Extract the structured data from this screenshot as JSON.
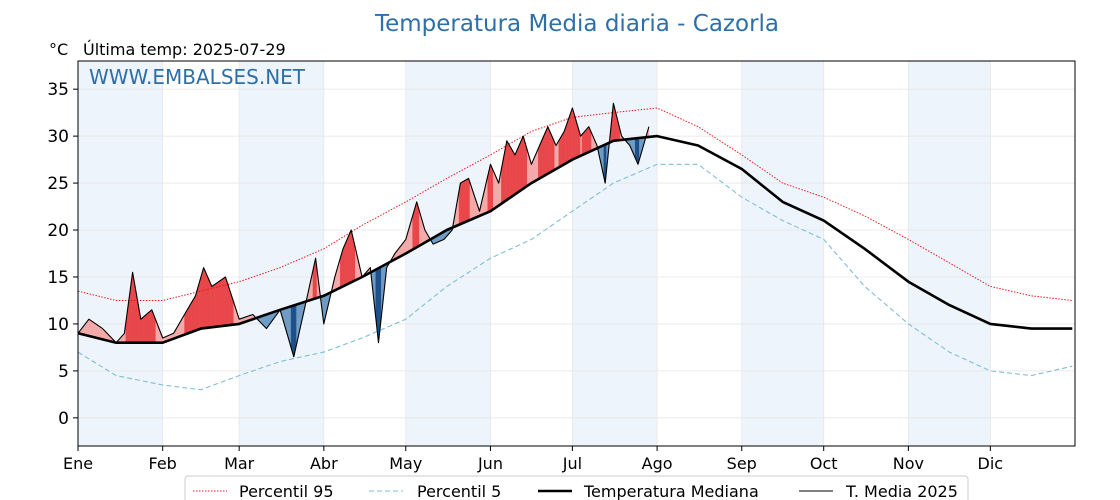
{
  "chart_data": {
    "type": "line",
    "title": "Temperatura Media diaria - Cazorla",
    "unit_label": "°C",
    "subtitle": "Última temp: 2025-07-29",
    "watermark": "WWW.EMBALSES.NET",
    "ylim": [
      -3,
      38
    ],
    "yticks": [
      0,
      5,
      10,
      15,
      20,
      25,
      30,
      35
    ],
    "month_labels": [
      "Ene",
      "Feb",
      "Mar",
      "Abr",
      "May",
      "Jun",
      "Jul",
      "Ago",
      "Sep",
      "Oct",
      "Nov",
      "Dic"
    ],
    "month_start_doy": [
      1,
      32,
      60,
      91,
      121,
      152,
      182,
      213,
      244,
      274,
      305,
      335
    ],
    "days_in_year": 365,
    "shaded_months": [
      "Ene",
      "Mar",
      "May",
      "Jul",
      "Sep",
      "Nov"
    ],
    "grid": true,
    "legend_position": "bottom",
    "colors": {
      "p95": "#e41a1c",
      "p5": "#7fbfd6",
      "median": "#000000",
      "current": "#000000",
      "above_fill": "#f4a9a8",
      "above_strong": "#e8474a",
      "below_fill": "#6e9cc4",
      "below_strong": "#1d4f8a",
      "title": "#2e6fa7",
      "watermark": "#2e6fa7",
      "band": "#eef4fb"
    },
    "series": [
      {
        "name": "Percentil 95",
        "key": "p95",
        "style": "dotted",
        "x": [
          1,
          15,
          32,
          46,
          60,
          75,
          91,
          105,
          121,
          136,
          152,
          167,
          182,
          197,
          213,
          228,
          244,
          259,
          274,
          289,
          305,
          320,
          335,
          350,
          365
        ],
        "y": [
          13.5,
          12.5,
          12.5,
          13.5,
          14.5,
          16,
          18,
          20.5,
          23,
          25.5,
          28,
          30.5,
          32,
          32.5,
          33,
          31,
          28,
          25,
          23.5,
          21.5,
          19,
          16.5,
          14,
          13,
          12.5
        ]
      },
      {
        "name": "Percentil 5",
        "key": "p5",
        "style": "dashed",
        "x": [
          1,
          15,
          32,
          46,
          60,
          75,
          91,
          105,
          121,
          136,
          152,
          167,
          182,
          197,
          213,
          228,
          244,
          259,
          274,
          289,
          305,
          320,
          335,
          350,
          365
        ],
        "y": [
          7,
          4.5,
          3.5,
          3,
          4.5,
          6,
          7,
          8.5,
          10.5,
          14,
          17,
          19,
          22,
          25,
          27,
          27,
          23.5,
          21,
          19,
          14,
          10,
          7,
          5,
          4.5,
          5.5
        ]
      },
      {
        "name": "Temperatura Mediana",
        "key": "median",
        "style": "solid-bold",
        "x": [
          1,
          15,
          32,
          46,
          60,
          75,
          91,
          105,
          121,
          136,
          152,
          167,
          182,
          197,
          213,
          228,
          244,
          259,
          274,
          289,
          305,
          320,
          335,
          350,
          365
        ],
        "y": [
          9,
          8,
          8,
          9.5,
          10,
          11.5,
          13,
          15,
          17.5,
          20,
          22,
          25,
          27.5,
          29.5,
          30,
          29,
          26.5,
          23,
          21,
          18,
          14.5,
          12,
          10,
          9.5,
          9.5
        ]
      },
      {
        "name": "T. Media 2025",
        "key": "current",
        "style": "solid-thin",
        "x": [
          1,
          5,
          10,
          15,
          18,
          21,
          24,
          28,
          32,
          36,
          40,
          44,
          47,
          50,
          55,
          60,
          65,
          70,
          75,
          80,
          85,
          88,
          91,
          95,
          98,
          101,
          105,
          108,
          111,
          114,
          117,
          121,
          125,
          128,
          131,
          135,
          138,
          141,
          144,
          148,
          152,
          155,
          158,
          161,
          164,
          167,
          170,
          173,
          176,
          179,
          182,
          185,
          188,
          191,
          194,
          197,
          200,
          203,
          206,
          210
        ],
        "y": [
          9,
          10.5,
          9.5,
          8,
          9,
          15.5,
          10.5,
          11.5,
          8.5,
          9,
          11,
          13,
          16,
          14,
          15,
          10.5,
          11,
          9.5,
          11.5,
          6.5,
          13,
          17,
          10,
          15,
          18,
          20,
          15,
          16,
          8,
          16,
          17.5,
          19,
          23,
          20,
          18.5,
          19,
          20,
          25,
          25.5,
          22,
          27,
          25,
          29.5,
          28,
          30,
          27,
          29,
          31,
          29,
          30.5,
          33,
          30,
          31,
          29,
          25,
          33.5,
          30,
          29,
          27,
          31
        ]
      }
    ]
  }
}
